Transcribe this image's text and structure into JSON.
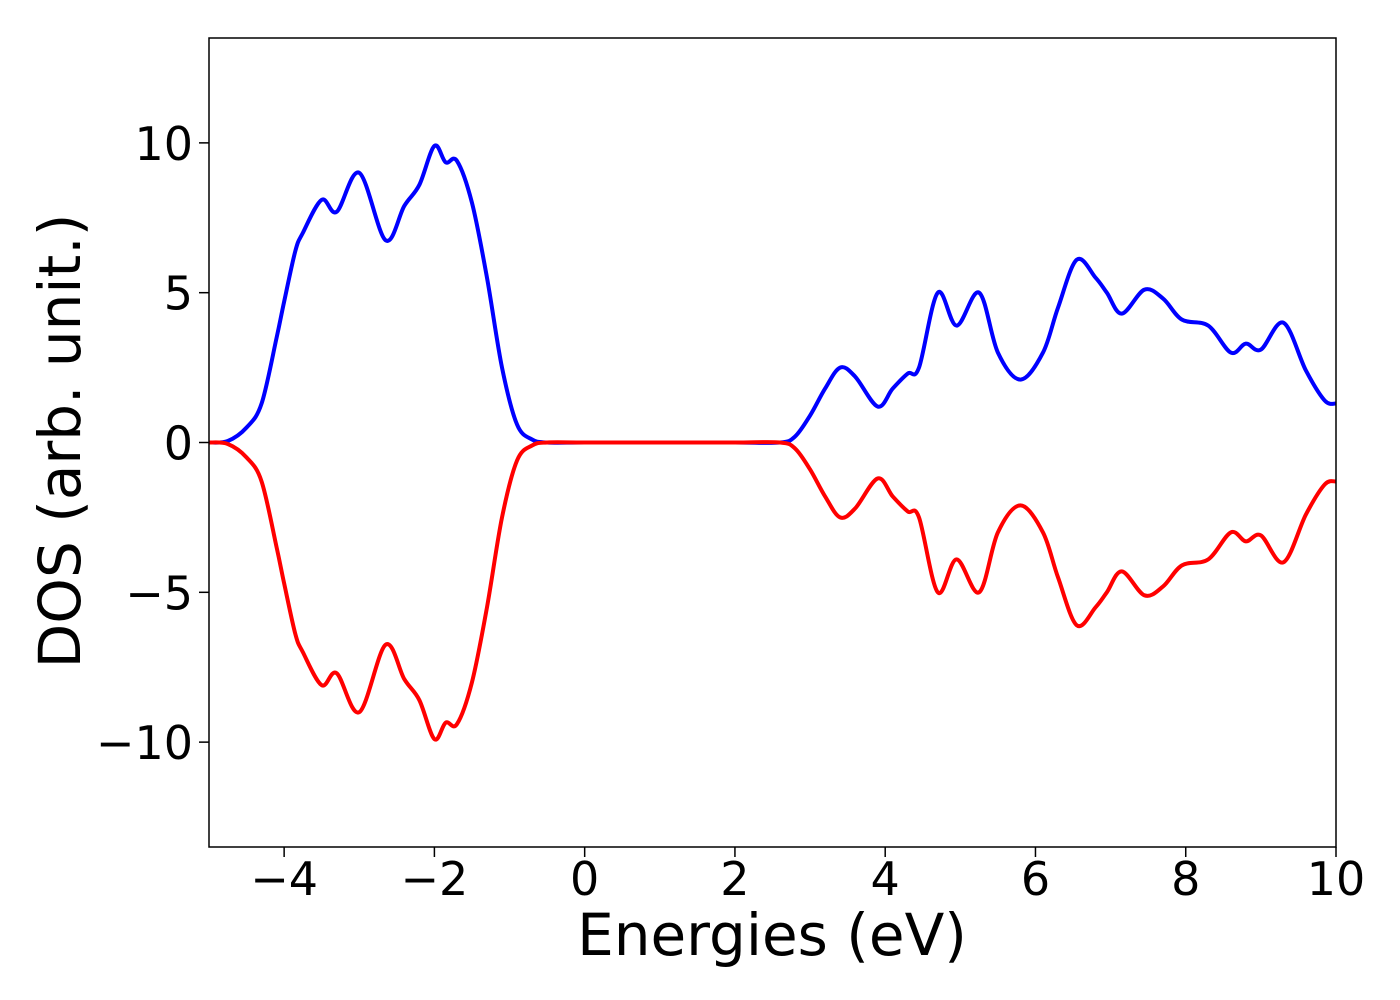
{
  "chart_data": {
    "type": "line",
    "xlabel": "Energies (eV)",
    "ylabel": "DOS (arb. unit.)",
    "x": [
      -5,
      -4.75,
      -4.5,
      -4.3,
      -4.1,
      -4.0,
      -3.85,
      -3.75,
      -3.5,
      -3.3,
      -3.0,
      -2.65,
      -2.4,
      -2.2,
      -2.0,
      -1.85,
      -1.7,
      -1.5,
      -1.3,
      -1.1,
      -0.9,
      -0.7,
      -0.5,
      0,
      1,
      2,
      2.6,
      2.8,
      3.0,
      3.2,
      3.4,
      3.6,
      3.9,
      4.1,
      4.3,
      4.45,
      4.7,
      4.95,
      5.25,
      5.5,
      5.8,
      6.1,
      6.3,
      6.55,
      6.8,
      6.95,
      7.15,
      7.45,
      7.7,
      7.95,
      8.3,
      8.6,
      8.8,
      9.0,
      9.3,
      9.6,
      9.85,
      10
    ],
    "series": [
      {
        "color": "#0000ff",
        "values": [
          0,
          0.05,
          0.5,
          1.3,
          3.5,
          4.7,
          6.4,
          7.0,
          8.1,
          7.7,
          9.0,
          6.75,
          7.9,
          8.6,
          9.9,
          9.35,
          9.4,
          8.0,
          5.5,
          2.5,
          0.6,
          0.1,
          0,
          0,
          0,
          0,
          0,
          0.2,
          0.9,
          1.8,
          2.5,
          2.2,
          1.2,
          1.8,
          2.3,
          2.5,
          5.0,
          3.9,
          5.0,
          3.0,
          2.1,
          3.0,
          4.5,
          6.1,
          5.5,
          5.0,
          4.3,
          5.1,
          4.8,
          4.1,
          3.9,
          3.0,
          3.3,
          3.1,
          4.0,
          2.4,
          1.4,
          1.3
        ]
      },
      {
        "color": "#ff0000",
        "values": [
          0,
          -0.05,
          -0.5,
          -1.3,
          -3.5,
          -4.7,
          -6.4,
          -7.0,
          -8.1,
          -7.7,
          -9.0,
          -6.75,
          -7.9,
          -8.6,
          -9.9,
          -9.35,
          -9.4,
          -8.0,
          -5.5,
          -2.5,
          -0.6,
          -0.1,
          0,
          0,
          0,
          0,
          0,
          -0.2,
          -0.9,
          -1.8,
          -2.5,
          -2.2,
          -1.2,
          -1.8,
          -2.3,
          -2.5,
          -5.0,
          -3.9,
          -5.0,
          -3.0,
          -2.1,
          -3.0,
          -4.5,
          -6.1,
          -5.5,
          -5.0,
          -4.3,
          -5.1,
          -4.8,
          -4.1,
          -3.9,
          -3.0,
          -3.3,
          -3.1,
          -4.0,
          -2.4,
          -1.4,
          -1.3
        ]
      }
    ],
    "xlim": [
      -5,
      10
    ],
    "xticks": [
      {
        "value": -4,
        "label": "−4"
      },
      {
        "value": -2,
        "label": "−2"
      },
      0,
      2,
      4,
      6,
      8,
      10
    ],
    "ylim": [
      -13.5,
      13.5
    ],
    "yticks": [
      {
        "value": -10,
        "label": "−10"
      },
      {
        "value": -5,
        "label": "−5"
      },
      0,
      5,
      10
    ]
  }
}
